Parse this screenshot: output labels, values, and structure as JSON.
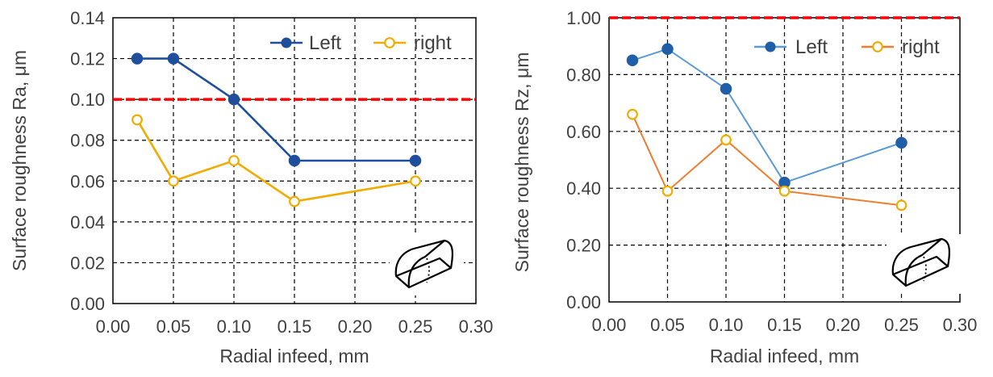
{
  "colors": {
    "left_chart1": "#1f4e9c",
    "right_chart1": "#f0ac00",
    "left_chart2": "#1f5fa8",
    "left_line_chart2": "#5b9bd5",
    "right_chart2": "#ed7d31",
    "right_marker_chart2": "#f0ac00",
    "threshold": "#ff0000"
  },
  "chart_data": [
    {
      "type": "line",
      "xlabel": "Radial infeed, mm",
      "ylabel": "Surface roughness Ra, μm",
      "xlim": [
        0,
        0.3
      ],
      "ylim": [
        0,
        0.14
      ],
      "x_ticks": [
        "0.00",
        "0.05",
        "0.10",
        "0.15",
        "0.20",
        "0.25",
        "0.30"
      ],
      "y_ticks": [
        "0.00",
        "0.02",
        "0.04",
        "0.06",
        "0.08",
        "0.10",
        "0.12",
        "0.14"
      ],
      "grid": true,
      "legend_position": "top-right",
      "threshold": 0.1,
      "x": [
        0.02,
        0.05,
        0.1,
        0.15,
        0.25
      ],
      "series": [
        {
          "name": "Left",
          "values": [
            0.12,
            0.12,
            0.1,
            0.07,
            0.07
          ],
          "marker": "filled",
          "color_key": "left_chart1"
        },
        {
          "name": "right",
          "values": [
            0.09,
            0.06,
            0.07,
            0.05,
            0.06
          ],
          "marker": "open",
          "color_key": "right_chart1"
        }
      ],
      "icon": "tool-insert-icon"
    },
    {
      "type": "line",
      "xlabel": "Radial infeed, mm",
      "ylabel": "Surface roughness Rz, μm",
      "xlim": [
        0,
        0.3
      ],
      "ylim": [
        0,
        1.0
      ],
      "x_ticks": [
        "0.00",
        "0.05",
        "0.10",
        "0.15",
        "0.20",
        "0.25",
        "0.30"
      ],
      "y_ticks": [
        "0.00",
        "0.20",
        "0.40",
        "0.60",
        "0.80",
        "1.00"
      ],
      "grid": true,
      "legend_position": "top-right",
      "threshold": 1.0,
      "x": [
        0.02,
        0.05,
        0.1,
        0.15,
        0.25
      ],
      "series": [
        {
          "name": "Left",
          "values": [
            0.85,
            0.89,
            0.75,
            0.42,
            0.56
          ],
          "marker": "filled",
          "color_key": "left_chart2",
          "line_color_key": "left_line_chart2"
        },
        {
          "name": "right",
          "values": [
            0.66,
            0.39,
            0.57,
            0.39,
            0.34
          ],
          "marker": "open",
          "color_key": "right_marker_chart2",
          "line_color_key": "right_chart2"
        }
      ],
      "icon": "tool-insert-icon"
    }
  ]
}
